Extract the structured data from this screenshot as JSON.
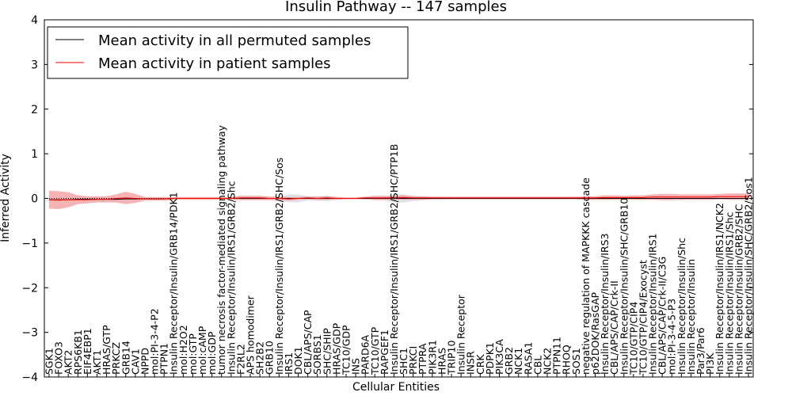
{
  "chart_data": {
    "type": "line",
    "title": "Insulin Pathway -- 147 samples",
    "xlabel": "Cellular Entities",
    "ylabel": "Inferred Activity",
    "ylim": [
      -4,
      4
    ],
    "yticks": [
      -4,
      -3,
      -2,
      -1,
      0,
      1,
      2,
      3,
      4
    ],
    "ytick_labels": [
      "−4",
      "−3",
      "−2",
      "−1",
      "0",
      "1",
      "2",
      "3",
      "4"
    ],
    "legend_position": "top-left",
    "categories": [
      "SGK1",
      "FOXO3",
      "AKT2",
      "RPS6KB1",
      "EIF4EBP1",
      "AKT1",
      "HRAS/GTP",
      "PRKCZ",
      "GRB14",
      "CAV1",
      "NPPD",
      "mol:PI-3-4-P2",
      "PTPN1",
      "Insulin Receptor/Insulin/GRB14/PDK1",
      "mol:H2O2",
      "mol:GTP",
      "mol:cAMP",
      "mol:GDP",
      "tumor necrosis factor-mediated signaling pathway",
      "Insulin Receptor/Insulin/IRS1/GRB2/Shc",
      "F2RL2",
      "APS homodimer",
      "SH2B2",
      "GRB10",
      "Insulin Receptor/Insulin/IRS1/GRB2/SHC/Sos",
      "IRS1",
      "DOK1",
      "CBL/APS/CAP",
      "SORBS1",
      "SHC/SHIP",
      "HRAS/GDP",
      "TC10/GDP",
      "INS",
      "PARD6A",
      "TC10/GTP",
      "RAPGEF1",
      "Insulin Receptor/Insulin/IRS1/GRB2/SHC/PTP1B",
      "SHC1",
      "PRKCI",
      "PTPRA",
      "PIK3R1",
      "HRAS",
      "TRIP10",
      "Insulin Receptor",
      "INSR",
      "CRK",
      "PDPK1",
      "PIK3CA",
      "GRB2",
      "NCK1",
      "RASA1",
      "CBL",
      "NCK2",
      "PTPN11",
      "RHOQ",
      "SOS1",
      "negative regulation of MAPKKK cascade",
      "p62DOK/RasGAP",
      "Insulin Receptor/Insulin/IRS3",
      "CBL/APS/CAP/Crk-II",
      "Insulin Receptor/Insulin/SHC/GRB10",
      "TC10/GTP/CIP4",
      "TC10/GTP/CIP4/Exocyst",
      "Insulin Receptor/Insulin/IRS1",
      "CBL/APS/CAP/Crk-II/C3G",
      "mol:PI-3-4-5-P3",
      "Insulin Receptor/Insulin/Shc",
      "Insulin Receptor/Insulin",
      "Par3/Par6",
      "PI3K",
      "Insulin Receptor/Insulin/IRS1/NCK2",
      "Insulin Receptor/Insulin/IRS1/Shc",
      "Insulin Receptor/Insulin/GRB2/SHC",
      "Insulin Receptor/Insulin/SHC/GRB2/Sos1"
    ],
    "series": [
      {
        "name": "Mean activity in all permuted samples",
        "color": "#000000",
        "values": [
          -0.03,
          -0.03,
          -0.03,
          -0.02,
          -0.02,
          -0.02,
          -0.02,
          -0.02,
          -0.01,
          -0.01,
          -0.01,
          -0.01,
          -0.01,
          0,
          0,
          0,
          0,
          0,
          0,
          0,
          0,
          0,
          0,
          0,
          0,
          0,
          0,
          0,
          0,
          0,
          0,
          0,
          0,
          0,
          0,
          0,
          0,
          0,
          0,
          0,
          0,
          0,
          0,
          0,
          0,
          0,
          0,
          0,
          0,
          0,
          0,
          0,
          0,
          0,
          0,
          0,
          0,
          0,
          0,
          0,
          0,
          0,
          0,
          0,
          0,
          0,
          0,
          0,
          0,
          0,
          0,
          0,
          0,
          0
        ],
        "band": [
          0.02,
          0.02,
          0.02,
          0.02,
          0.02,
          0.02,
          0.02,
          0.02,
          0.02,
          0.02,
          0.02,
          0.02,
          0.02,
          0.02,
          0.02,
          0.02,
          0.02,
          0.02,
          0.02,
          0.02,
          0.03,
          0.03,
          0.03,
          0.04,
          0.04,
          0.09,
          0.09,
          0.05,
          0.05,
          0.06,
          0.03,
          0.02,
          0.02,
          0.02,
          0.02,
          0.03,
          0.09,
          0.09,
          0.06,
          0.04,
          0.03,
          0.03,
          0.02,
          0.02,
          0.02,
          0.02,
          0.02,
          0.02,
          0.02,
          0.02,
          0.02,
          0.02,
          0.02,
          0.02,
          0.02,
          0.02,
          0.03,
          0.03,
          0.03,
          0.03,
          0.03,
          0.03,
          0.03,
          0.03,
          0.03,
          0.03,
          0.03,
          0.03,
          0.03,
          0.03,
          0.03,
          0.03,
          0.03,
          0.03
        ]
      },
      {
        "name": "Mean activity in patient samples",
        "color": "#ff0000",
        "band_color": "#f08080",
        "values": [
          -0.03,
          -0.04,
          -0.03,
          -0.03,
          -0.03,
          -0.02,
          -0.02,
          0.0,
          0.01,
          0.0,
          -0.01,
          -0.01,
          -0.01,
          0,
          0,
          0,
          0,
          0,
          0,
          0,
          0.01,
          0.01,
          0.01,
          0,
          0,
          -0.01,
          0,
          0.01,
          0,
          0.01,
          0,
          0,
          0,
          0.01,
          0.01,
          0.01,
          0.01,
          0.02,
          0.01,
          0.01,
          0.01,
          0.01,
          0.01,
          0.01,
          0.01,
          0.01,
          0.01,
          0.01,
          0.01,
          0.01,
          0.01,
          0.01,
          0.01,
          0.01,
          0.01,
          0.01,
          0.01,
          0.01,
          0.02,
          0.02,
          0.02,
          0.02,
          0.02,
          0.03,
          0.03,
          0.03,
          0.03,
          0.03,
          0.03,
          0.03,
          0.04,
          0.04,
          0.04,
          0.04
        ],
        "band": [
          0.2,
          0.2,
          0.17,
          0.1,
          0.08,
          0.07,
          0.07,
          0.09,
          0.14,
          0.1,
          0.04,
          0.04,
          0.04,
          0.03,
          0.03,
          0.03,
          0.03,
          0.03,
          0.03,
          0.03,
          0.05,
          0.05,
          0.05,
          0.04,
          0.04,
          0.04,
          0.03,
          0.03,
          0.04,
          0.04,
          0.03,
          0.02,
          0.02,
          0.03,
          0.05,
          0.05,
          0.04,
          0.05,
          0.04,
          0.04,
          0.03,
          0.03,
          0.03,
          0.03,
          0.03,
          0.03,
          0.03,
          0.03,
          0.03,
          0.03,
          0.03,
          0.03,
          0.03,
          0.03,
          0.03,
          0.03,
          0.04,
          0.04,
          0.05,
          0.05,
          0.04,
          0.05,
          0.05,
          0.06,
          0.07,
          0.07,
          0.06,
          0.06,
          0.06,
          0.06,
          0.06,
          0.07,
          0.07,
          0.07
        ]
      }
    ]
  }
}
